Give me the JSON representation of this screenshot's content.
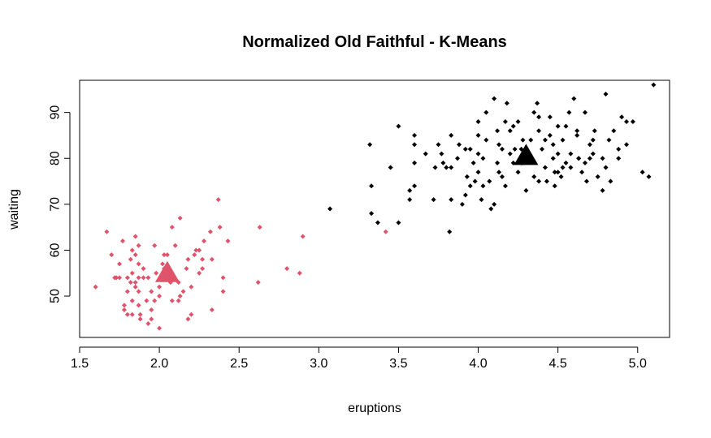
{
  "chart_data": {
    "type": "scatter",
    "title": "Normalized Old Faithful - K-Means",
    "xlabel": "eruptions",
    "ylabel": "waiting",
    "xlim": [
      1.5,
      5.2
    ],
    "ylim": [
      41,
      97
    ],
    "xticks": [
      "1.5",
      "2.0",
      "2.5",
      "3.0",
      "3.5",
      "4.0",
      "4.5",
      "5.0"
    ],
    "yticks": [
      "50",
      "60",
      "70",
      "80",
      "90"
    ],
    "grid": false,
    "legend": "none",
    "colors": {
      "cluster1": "#DF536B",
      "cluster2": "#000000"
    },
    "series": [
      {
        "cluster": 1,
        "color": "#DF536B",
        "points": [
          [
            1.6,
            52
          ],
          [
            1.67,
            64
          ],
          [
            1.7,
            59
          ],
          [
            1.73,
            54
          ],
          [
            1.75,
            54
          ],
          [
            1.75,
            57
          ],
          [
            1.77,
            62
          ],
          [
            1.78,
            48
          ],
          [
            1.78,
            47
          ],
          [
            1.8,
            46
          ],
          [
            1.8,
            54
          ],
          [
            1.8,
            51
          ],
          [
            1.82,
            58
          ],
          [
            1.83,
            60
          ],
          [
            1.83,
            55
          ],
          [
            1.83,
            49
          ],
          [
            1.83,
            46
          ],
          [
            1.85,
            63
          ],
          [
            1.85,
            59
          ],
          [
            1.85,
            53
          ],
          [
            1.85,
            52
          ],
          [
            1.87,
            61
          ],
          [
            1.87,
            57
          ],
          [
            1.87,
            54
          ],
          [
            1.87,
            51
          ],
          [
            1.87,
            48
          ],
          [
            1.88,
            46
          ],
          [
            1.88,
            45
          ],
          [
            1.9,
            56
          ],
          [
            1.9,
            54
          ],
          [
            1.92,
            49
          ],
          [
            1.93,
            44
          ],
          [
            1.95,
            51
          ],
          [
            1.95,
            45
          ],
          [
            1.97,
            49
          ],
          [
            1.97,
            61
          ],
          [
            2.0,
            52
          ],
          [
            2.0,
            43
          ],
          [
            2.0,
            50
          ],
          [
            2.02,
            57
          ],
          [
            2.03,
            59
          ],
          [
            2.03,
            56
          ],
          [
            2.07,
            53
          ],
          [
            2.08,
            49
          ],
          [
            2.08,
            65
          ],
          [
            2.1,
            61
          ],
          [
            2.12,
            49
          ],
          [
            2.13,
            67
          ],
          [
            2.13,
            50
          ],
          [
            2.15,
            51
          ],
          [
            2.17,
            56
          ],
          [
            2.18,
            45
          ],
          [
            2.18,
            58
          ],
          [
            2.2,
            52
          ],
          [
            2.2,
            46
          ],
          [
            2.22,
            59
          ],
          [
            2.23,
            60
          ],
          [
            2.25,
            60
          ],
          [
            2.25,
            55
          ],
          [
            2.27,
            56
          ],
          [
            2.28,
            62
          ],
          [
            2.32,
            64
          ],
          [
            2.33,
            58
          ],
          [
            2.33,
            47
          ],
          [
            2.37,
            71
          ],
          [
            2.38,
            65
          ],
          [
            2.4,
            51
          ],
          [
            2.4,
            54
          ],
          [
            2.43,
            62
          ],
          [
            2.62,
            53
          ],
          [
            2.63,
            65
          ],
          [
            2.8,
            56
          ],
          [
            2.88,
            55
          ],
          [
            2.9,
            63
          ],
          [
            3.42,
            64
          ],
          [
            1.72,
            54
          ],
          [
            1.93,
            54
          ],
          [
            2.05,
            59
          ],
          [
            1.98,
            55
          ],
          [
            2.27,
            58
          ],
          [
            1.82,
            53
          ],
          [
            1.95,
            47
          ],
          [
            2.12,
            53
          ]
        ]
      },
      {
        "cluster": 2,
        "color": "#000000",
        "points": [
          [
            3.07,
            69
          ],
          [
            3.32,
            83
          ],
          [
            3.33,
            74
          ],
          [
            3.33,
            68
          ],
          [
            3.37,
            66
          ],
          [
            3.45,
            78
          ],
          [
            3.5,
            87
          ],
          [
            3.5,
            66
          ],
          [
            3.57,
            71
          ],
          [
            3.57,
            73
          ],
          [
            3.6,
            85
          ],
          [
            3.6,
            83
          ],
          [
            3.6,
            79
          ],
          [
            3.6,
            74
          ],
          [
            3.67,
            81
          ],
          [
            3.72,
            71
          ],
          [
            3.73,
            78
          ],
          [
            3.75,
            83
          ],
          [
            3.77,
            81
          ],
          [
            3.78,
            79
          ],
          [
            3.8,
            78
          ],
          [
            3.82,
            64
          ],
          [
            3.83,
            85
          ],
          [
            3.83,
            78
          ],
          [
            3.83,
            71
          ],
          [
            3.87,
            80
          ],
          [
            3.88,
            83
          ],
          [
            3.9,
            70
          ],
          [
            3.92,
            82
          ],
          [
            3.93,
            76
          ],
          [
            3.95,
            74
          ],
          [
            3.97,
            79
          ],
          [
            4.0,
            77
          ],
          [
            4.0,
            81
          ],
          [
            4.0,
            85
          ],
          [
            4.02,
            71
          ],
          [
            4.03,
            80
          ],
          [
            4.05,
            84
          ],
          [
            4.05,
            90
          ],
          [
            4.07,
            75
          ],
          [
            4.08,
            69
          ],
          [
            4.1,
            70
          ],
          [
            4.1,
            93
          ],
          [
            4.12,
            79
          ],
          [
            4.13,
            83
          ],
          [
            4.15,
            76
          ],
          [
            4.17,
            88
          ],
          [
            4.17,
            74
          ],
          [
            4.18,
            92
          ],
          [
            4.2,
            86
          ],
          [
            4.22,
            79
          ],
          [
            4.23,
            82
          ],
          [
            4.25,
            77
          ],
          [
            4.27,
            82
          ],
          [
            4.28,
            79
          ],
          [
            4.3,
            73
          ],
          [
            4.32,
            81
          ],
          [
            4.33,
            84
          ],
          [
            4.35,
            90
          ],
          [
            4.35,
            76
          ],
          [
            4.37,
            92
          ],
          [
            4.38,
            86
          ],
          [
            4.4,
            82
          ],
          [
            4.42,
            78
          ],
          [
            4.43,
            75
          ],
          [
            4.45,
            89
          ],
          [
            4.47,
            80
          ],
          [
            4.48,
            74
          ],
          [
            4.5,
            81
          ],
          [
            4.5,
            87
          ],
          [
            4.52,
            76
          ],
          [
            4.53,
            84
          ],
          [
            4.55,
            79
          ],
          [
            4.57,
            90
          ],
          [
            4.58,
            78
          ],
          [
            4.6,
            93
          ],
          [
            4.62,
            85
          ],
          [
            4.63,
            80
          ],
          [
            4.65,
            77
          ],
          [
            4.67,
            90
          ],
          [
            4.68,
            75
          ],
          [
            4.7,
            83
          ],
          [
            4.72,
            81
          ],
          [
            4.73,
            86
          ],
          [
            4.75,
            76
          ],
          [
            4.78,
            80
          ],
          [
            4.8,
            94
          ],
          [
            4.82,
            84
          ],
          [
            4.83,
            75
          ],
          [
            4.85,
            86
          ],
          [
            4.88,
            80
          ],
          [
            4.9,
            89
          ],
          [
            4.93,
            88
          ],
          [
            4.97,
            88
          ],
          [
            5.03,
            77
          ],
          [
            5.07,
            76
          ],
          [
            5.1,
            96
          ],
          [
            4.93,
            83
          ],
          [
            4.78,
            73
          ],
          [
            4.63,
            80
          ],
          [
            4.48,
            77
          ],
          [
            4.42,
            84
          ],
          [
            4.27,
            79
          ],
          [
            4.15,
            82
          ],
          [
            3.98,
            75
          ],
          [
            3.92,
            72
          ],
          [
            4.22,
            87
          ],
          [
            4.58,
            81
          ],
          [
            4.33,
            80
          ],
          [
            4.45,
            85
          ],
          [
            4.7,
            80
          ],
          [
            4.88,
            82
          ],
          [
            4.13,
            77
          ],
          [
            4.53,
            78
          ],
          [
            4.25,
            88
          ],
          [
            4.38,
            75
          ],
          [
            4.0,
            88
          ],
          [
            4.62,
            86
          ],
          [
            4.8,
            78
          ],
          [
            4.2,
            81
          ],
          [
            4.47,
            83
          ],
          [
            4.55,
            87
          ],
          [
            4.67,
            79
          ],
          [
            4.12,
            86
          ],
          [
            4.03,
            74
          ],
          [
            4.38,
            89
          ],
          [
            3.95,
            82
          ],
          [
            4.28,
            84
          ],
          [
            4.5,
            77
          ],
          [
            4.72,
            84
          ]
        ]
      }
    ],
    "centers": [
      {
        "cluster": 1,
        "color": "#DF536B",
        "x": 2.05,
        "y": 55
      },
      {
        "cluster": 2,
        "color": "#000000",
        "x": 4.3,
        "y": 80.5
      }
    ]
  }
}
